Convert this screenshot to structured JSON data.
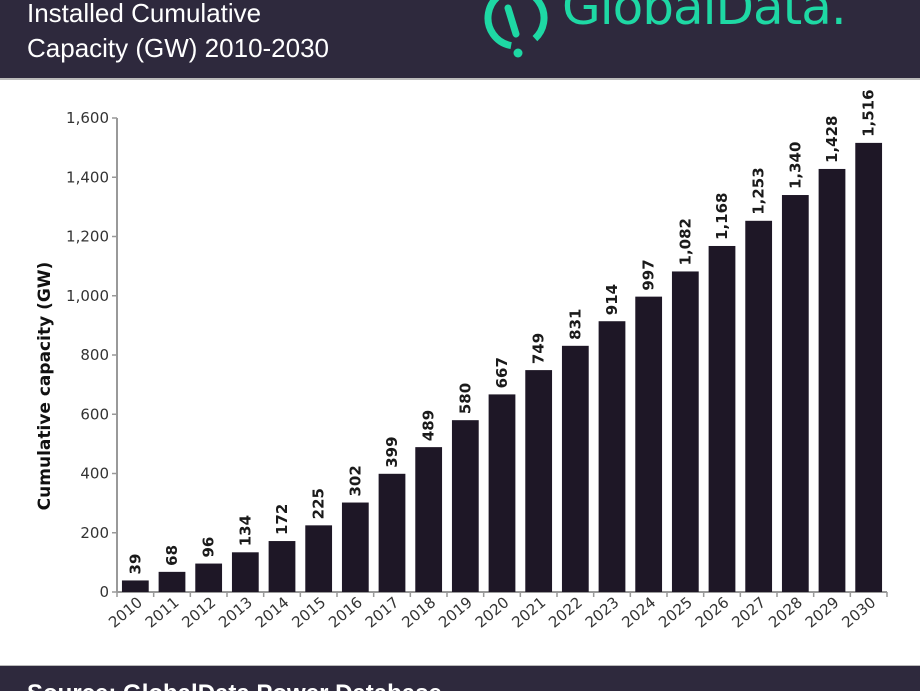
{
  "header": {
    "title_line1": "Installed Cumulative",
    "title_line2": "Capacity (GW) 2010-2030",
    "logo_text": "GlobalData."
  },
  "footer": {
    "source": "Source: GlobalData Power Database"
  },
  "colors": {
    "header_bg": "#2e293d",
    "brand": "#1ed8a4",
    "bar": "#1e1726",
    "axis": "#999999"
  },
  "chart_data": {
    "type": "bar",
    "title": "Installed Cumulative Capacity (GW) 2010-2030",
    "xlabel": "",
    "ylabel": "Cumulative capacity (GW)",
    "ylim": [
      0,
      1600
    ],
    "yticks": [
      0,
      200,
      400,
      600,
      800,
      1000,
      1200,
      1400,
      1600
    ],
    "ytick_labels": [
      "0",
      "200",
      "400",
      "600",
      "800",
      "1,000",
      "1,200",
      "1,400",
      "1,600"
    ],
    "grid": false,
    "categories": [
      "2010",
      "2011",
      "2012",
      "2013",
      "2014",
      "2015",
      "2016",
      "2017",
      "2018",
      "2019",
      "2020",
      "2021",
      "2022",
      "2023",
      "2024",
      "2025",
      "2026",
      "2027",
      "2028",
      "2029",
      "2030"
    ],
    "values": [
      39,
      68,
      96,
      134,
      172,
      225,
      302,
      399,
      489,
      580,
      667,
      749,
      831,
      914,
      997,
      1082,
      1168,
      1253,
      1340,
      1428,
      1516
    ],
    "data_labels": [
      "39",
      "68",
      "96",
      "134",
      "172",
      "225",
      "302",
      "399",
      "489",
      "580",
      "667",
      "749",
      "831",
      "914",
      "997",
      "1,082",
      "1,168",
      "1,253",
      "1,340",
      "1,428",
      "1,516"
    ]
  }
}
